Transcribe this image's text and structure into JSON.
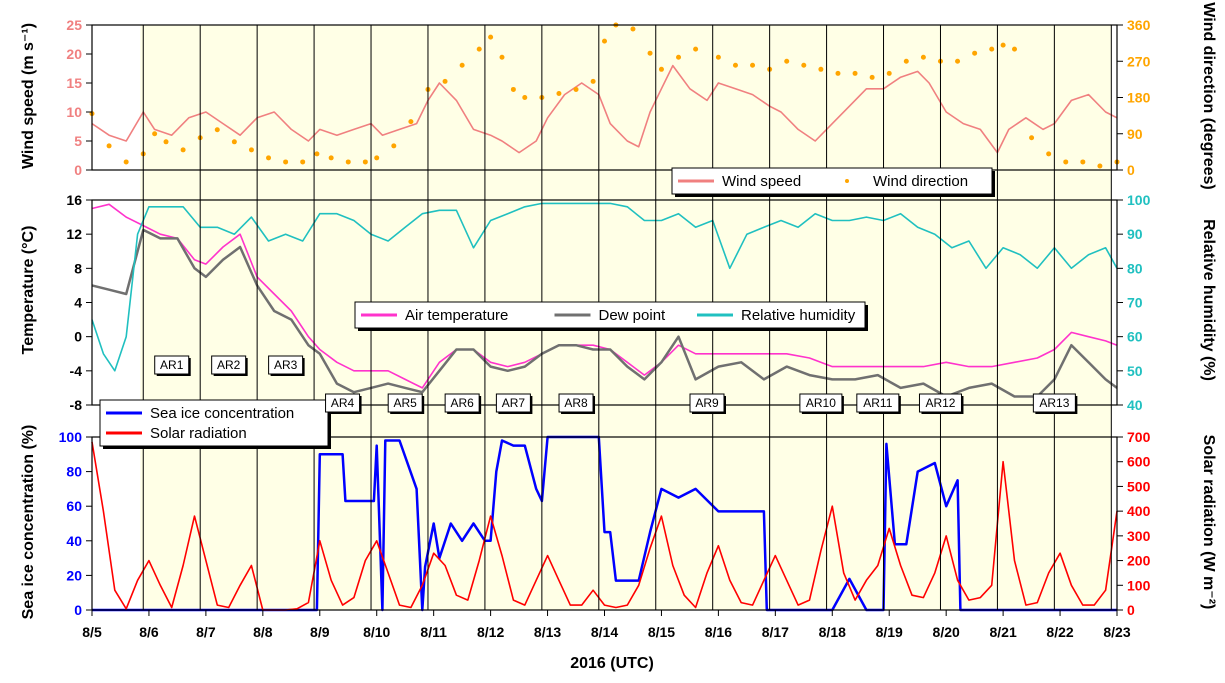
{
  "colors": {
    "wind_speed": "#F08080",
    "wind_direction": "#FFA500",
    "air_temperature": "#FF33CC",
    "dew_point": "#707070",
    "relative_humidity": "#20C0C0",
    "sea_ice": "#0000FF",
    "solar_radiation": "#FF0000",
    "ar_shading": "#FFFFE6"
  },
  "chart_data": [
    {
      "type": "line",
      "panel": "top",
      "xlabel": "2016 (UTC)",
      "x_ticks": [
        "8/5",
        "8/6",
        "8/7",
        "8/8",
        "8/9",
        "8/10",
        "8/11",
        "8/12",
        "8/13",
        "8/14",
        "8/15",
        "8/16",
        "8/17",
        "8/18",
        "8/19",
        "8/20",
        "8/21",
        "8/22",
        "8/23"
      ],
      "x_range": [
        5.0,
        23.0
      ],
      "ylabel_left": "Wind speed (m s⁻¹)",
      "ylabel_right": "Wind direction (degrees)",
      "ylim_left": [
        0,
        25
      ],
      "ylim_right": [
        0,
        360
      ],
      "yticks_left": [
        "0",
        "5",
        "10",
        "15",
        "20",
        "25"
      ],
      "yticks_right": [
        "0",
        "90",
        "180",
        "270",
        "360"
      ],
      "legend": {
        "placement": "bottom-right",
        "entries": [
          "Wind speed",
          "Wind direction"
        ]
      },
      "series": [
        {
          "name": "Wind speed",
          "axis": "left",
          "style": "line",
          "x": [
            5.0,
            5.3,
            5.6,
            5.9,
            6.1,
            6.4,
            6.7,
            7.0,
            7.3,
            7.6,
            7.9,
            8.2,
            8.5,
            8.8,
            9.0,
            9.3,
            9.6,
            9.9,
            10.1,
            10.4,
            10.7,
            10.9,
            11.1,
            11.4,
            11.7,
            12.0,
            12.2,
            12.5,
            12.8,
            13.0,
            13.3,
            13.6,
            13.9,
            14.1,
            14.4,
            14.6,
            14.8,
            15.0,
            15.2,
            15.5,
            15.8,
            16.0,
            16.3,
            16.6,
            16.9,
            17.1,
            17.4,
            17.7,
            18.0,
            18.3,
            18.6,
            18.9,
            19.2,
            19.5,
            19.7,
            20.0,
            20.3,
            20.6,
            20.9,
            21.1,
            21.4,
            21.7,
            21.9,
            22.2,
            22.5,
            22.8,
            23.0
          ],
          "y": [
            8,
            6,
            5,
            10,
            7,
            6,
            9,
            10,
            8,
            6,
            9,
            10,
            7,
            5,
            7,
            6,
            7,
            8,
            6,
            7,
            8,
            12,
            15,
            12,
            7,
            6,
            5,
            3,
            5,
            9,
            13,
            15,
            13,
            8,
            5,
            4,
            10,
            14,
            18,
            14,
            12,
            15,
            14,
            13,
            11,
            10,
            7,
            5,
            8,
            11,
            14,
            14,
            16,
            17,
            15,
            10,
            8,
            7,
            3,
            7,
            9,
            7,
            8,
            12,
            13,
            10,
            9
          ]
        },
        {
          "name": "Wind direction",
          "axis": "right",
          "style": "dots",
          "x": [
            5.0,
            5.3,
            5.6,
            5.9,
            6.1,
            6.3,
            6.6,
            6.9,
            7.2,
            7.5,
            7.8,
            8.1,
            8.4,
            8.7,
            8.95,
            9.2,
            9.5,
            9.8,
            10.0,
            10.3,
            10.6,
            10.9,
            11.2,
            11.5,
            11.8,
            12.0,
            12.2,
            12.4,
            12.6,
            12.9,
            13.2,
            13.5,
            13.8,
            14.0,
            14.2,
            14.5,
            14.8,
            15.0,
            15.3,
            15.6,
            16.0,
            16.3,
            16.6,
            16.9,
            17.2,
            17.5,
            17.8,
            18.1,
            18.4,
            18.7,
            19.0,
            19.3,
            19.6,
            19.9,
            20.2,
            20.5,
            20.8,
            21.0,
            21.2,
            21.5,
            21.8,
            22.1,
            22.4,
            22.7,
            23.0
          ],
          "y": [
            140,
            60,
            20,
            40,
            90,
            70,
            50,
            80,
            100,
            70,
            50,
            30,
            20,
            20,
            40,
            30,
            20,
            20,
            30,
            60,
            120,
            200,
            220,
            260,
            300,
            330,
            280,
            200,
            180,
            180,
            190,
            200,
            220,
            320,
            360,
            350,
            290,
            250,
            280,
            300,
            280,
            260,
            260,
            250,
            270,
            260,
            250,
            240,
            240,
            230,
            240,
            270,
            280,
            270,
            270,
            290,
            300,
            310,
            300,
            80,
            40,
            20,
            20,
            10,
            20
          ]
        }
      ]
    },
    {
      "type": "line",
      "panel": "middle",
      "ylabel_left": "Temperature (°C)",
      "ylabel_right": "Relative humidity (%)",
      "ylim_left": [
        -8,
        16
      ],
      "ylim_right": [
        40,
        100
      ],
      "yticks_left": [
        "-8",
        "-4",
        "0",
        "4",
        "8",
        "12",
        "16"
      ],
      "yticks_right": [
        "40",
        "50",
        "60",
        "70",
        "80",
        "90",
        "100"
      ],
      "legend": {
        "placement": "center-right",
        "entries": [
          "Air temperature",
          "Dew point",
          "Relative humidity"
        ]
      },
      "series": [
        {
          "name": "Air temperature",
          "axis": "left",
          "x": [
            5.0,
            5.3,
            5.6,
            5.9,
            6.2,
            6.5,
            6.8,
            7.0,
            7.3,
            7.6,
            7.9,
            8.2,
            8.5,
            8.8,
            9.0,
            9.3,
            9.6,
            9.9,
            10.2,
            10.5,
            10.8,
            11.1,
            11.4,
            11.7,
            12.0,
            12.3,
            12.6,
            12.9,
            13.2,
            13.5,
            13.8,
            14.1,
            14.4,
            14.7,
            15.0,
            15.3,
            15.6,
            16.0,
            16.4,
            16.8,
            17.2,
            17.6,
            18.0,
            18.4,
            18.8,
            19.2,
            19.6,
            20.0,
            20.4,
            20.8,
            21.2,
            21.6,
            21.9,
            22.2,
            22.5,
            22.8,
            23.0
          ],
          "y": [
            15,
            15.5,
            14,
            13,
            12,
            11.5,
            9,
            8.5,
            10.5,
            12,
            7,
            5,
            3,
            0,
            -1.5,
            -3,
            -4,
            -4,
            -4,
            -5,
            -6,
            -3,
            -1.5,
            -1.5,
            -3,
            -3.5,
            -3,
            -2,
            -1,
            -1,
            -1,
            -1.5,
            -3,
            -4.5,
            -3,
            -1,
            -2,
            -2,
            -2,
            -2,
            -2,
            -2.5,
            -3.5,
            -3.5,
            -3.5,
            -3.5,
            -3.5,
            -3,
            -3.5,
            -3.5,
            -3,
            -2.5,
            -1.5,
            0.5,
            0,
            -0.5,
            -1
          ]
        },
        {
          "name": "Dew point",
          "axis": "left",
          "x": [
            5.0,
            5.3,
            5.6,
            5.9,
            6.2,
            6.5,
            6.8,
            7.0,
            7.3,
            7.6,
            7.9,
            8.2,
            8.5,
            8.8,
            9.0,
            9.3,
            9.6,
            9.9,
            10.2,
            10.5,
            10.8,
            11.1,
            11.4,
            11.7,
            12.0,
            12.3,
            12.6,
            12.9,
            13.2,
            13.5,
            13.8,
            14.1,
            14.4,
            14.7,
            15.0,
            15.3,
            15.6,
            16.0,
            16.4,
            16.8,
            17.2,
            17.6,
            18.0,
            18.4,
            18.8,
            19.2,
            19.6,
            20.0,
            20.4,
            20.8,
            21.2,
            21.6,
            21.9,
            22.2,
            22.5,
            22.8,
            23.0
          ],
          "y": [
            6,
            5.5,
            5,
            12.5,
            11.5,
            11.5,
            8,
            7,
            9,
            10.5,
            6,
            3,
            2,
            -1,
            -2,
            -5.5,
            -6.5,
            -6,
            -5.5,
            -6,
            -6.5,
            -4,
            -1.5,
            -1.5,
            -3.5,
            -4,
            -3.5,
            -2,
            -1,
            -1,
            -1.5,
            -1.5,
            -3.5,
            -5,
            -3,
            0,
            -5,
            -3.5,
            -3,
            -5,
            -3.5,
            -4.5,
            -5,
            -5,
            -4.5,
            -6,
            -5.5,
            -7,
            -6,
            -5.5,
            -7,
            -7,
            -5,
            -1,
            -3,
            -5,
            -6
          ]
        },
        {
          "name": "Relative humidity",
          "axis": "right",
          "x": [
            5.0,
            5.2,
            5.4,
            5.6,
            5.8,
            6.0,
            6.3,
            6.6,
            6.9,
            7.2,
            7.5,
            7.8,
            8.1,
            8.4,
            8.7,
            9.0,
            9.3,
            9.6,
            9.9,
            10.2,
            10.5,
            10.8,
            11.1,
            11.4,
            11.7,
            12.0,
            12.3,
            12.6,
            12.9,
            13.2,
            13.5,
            13.8,
            14.1,
            14.4,
            14.7,
            15.0,
            15.3,
            15.6,
            15.9,
            16.2,
            16.5,
            16.8,
            17.1,
            17.4,
            17.7,
            18.0,
            18.3,
            18.6,
            18.9,
            19.2,
            19.5,
            19.8,
            20.1,
            20.4,
            20.7,
            21.0,
            21.3,
            21.6,
            21.9,
            22.2,
            22.5,
            22.8,
            23.0
          ],
          "y": [
            65,
            55,
            50,
            60,
            90,
            98,
            98,
            98,
            92,
            92,
            90,
            95,
            88,
            90,
            88,
            96,
            96,
            94,
            90,
            88,
            92,
            96,
            97,
            97,
            86,
            94,
            96,
            98,
            99,
            99,
            99,
            99,
            99,
            98,
            94,
            94,
            96,
            92,
            94,
            80,
            90,
            92,
            94,
            92,
            96,
            94,
            94,
            95,
            94,
            96,
            92,
            90,
            86,
            88,
            80,
            86,
            84,
            80,
            86,
            80,
            84,
            86,
            80
          ]
        }
      ]
    },
    {
      "type": "line",
      "panel": "bottom",
      "ylabel_left": "Sea ice concentration (%)",
      "ylabel_right": "Solar radiation (W m⁻²)",
      "ylim_left": [
        0,
        100
      ],
      "ylim_right": [
        0,
        700
      ],
      "yticks_left": [
        "0",
        "20",
        "40",
        "60",
        "80",
        "100"
      ],
      "yticks_right": [
        "0",
        "100",
        "200",
        "300",
        "400",
        "500",
        "600",
        "700"
      ],
      "legend": {
        "placement": "top-left",
        "entries": [
          "Sea ice concentration",
          "Solar radiation"
        ]
      },
      "series": [
        {
          "name": "Sea ice concentration",
          "axis": "left",
          "x": [
            5.0,
            8.95,
            9.0,
            9.05,
            9.4,
            9.45,
            9.95,
            10.0,
            10.1,
            10.15,
            10.4,
            10.7,
            10.8,
            10.85,
            11.0,
            11.1,
            11.3,
            11.5,
            11.7,
            11.9,
            12.0,
            12.1,
            12.2,
            12.4,
            12.6,
            12.8,
            12.9,
            13.0,
            13.9,
            14.0,
            14.1,
            14.2,
            14.6,
            14.8,
            15.0,
            15.3,
            15.6,
            16.0,
            16.8,
            16.85,
            17.8,
            18.0,
            18.3,
            18.6,
            18.9,
            18.95,
            19.1,
            19.3,
            19.5,
            19.8,
            20.0,
            20.2,
            20.25,
            23.0
          ],
          "y": [
            0,
            0,
            90,
            90,
            90,
            63,
            63,
            95,
            0,
            98,
            98,
            70,
            0,
            25,
            50,
            30,
            50,
            40,
            50,
            40,
            40,
            80,
            98,
            95,
            95,
            70,
            63,
            100,
            100,
            45,
            45,
            17,
            17,
            45,
            70,
            65,
            70,
            57,
            57,
            0,
            0,
            0,
            18,
            0,
            0,
            96,
            38,
            38,
            80,
            85,
            60,
            75,
            0,
            0
          ]
        },
        {
          "name": "Solar radiation",
          "axis": "right",
          "x": [
            5.0,
            5.2,
            5.4,
            5.6,
            5.8,
            6.0,
            6.2,
            6.4,
            6.6,
            6.8,
            7.0,
            7.2,
            7.4,
            7.6,
            7.8,
            8.0,
            8.2,
            8.4,
            8.6,
            8.8,
            9.0,
            9.2,
            9.4,
            9.6,
            9.8,
            10.0,
            10.2,
            10.4,
            10.6,
            10.8,
            11.0,
            11.2,
            11.4,
            11.6,
            11.8,
            12.0,
            12.2,
            12.4,
            12.6,
            12.8,
            13.0,
            13.2,
            13.4,
            13.6,
            13.8,
            14.0,
            14.2,
            14.4,
            14.6,
            14.8,
            15.0,
            15.2,
            15.4,
            15.6,
            15.8,
            16.0,
            16.2,
            16.4,
            16.6,
            16.8,
            17.0,
            17.2,
            17.4,
            17.6,
            17.8,
            18.0,
            18.2,
            18.4,
            18.6,
            18.8,
            19.0,
            19.2,
            19.4,
            19.6,
            19.8,
            20.0,
            20.2,
            20.4,
            20.6,
            20.8,
            21.0,
            21.2,
            21.4,
            21.6,
            21.8,
            22.0,
            22.2,
            22.4,
            22.6,
            22.8,
            23.0
          ],
          "y": [
            680,
            400,
            80,
            5,
            120,
            200,
            100,
            10,
            180,
            380,
            200,
            20,
            10,
            100,
            180,
            0,
            0,
            0,
            5,
            30,
            280,
            120,
            20,
            50,
            200,
            280,
            150,
            20,
            10,
            100,
            230,
            180,
            60,
            40,
            200,
            380,
            220,
            40,
            20,
            120,
            220,
            120,
            20,
            20,
            80,
            20,
            10,
            20,
            100,
            250,
            380,
            180,
            60,
            10,
            150,
            260,
            120,
            30,
            20,
            120,
            220,
            120,
            20,
            40,
            240,
            420,
            150,
            40,
            120,
            180,
            330,
            180,
            60,
            50,
            150,
            300,
            120,
            40,
            50,
            100,
            600,
            200,
            20,
            30,
            150,
            230,
            100,
            20,
            20,
            80,
            400
          ]
        }
      ]
    }
  ],
  "ar_labels": [
    "AR1",
    "AR2",
    "AR3",
    "AR4",
    "AR5",
    "AR6",
    "AR7",
    "AR8",
    "AR9",
    "AR10",
    "AR11",
    "AR12",
    "AR13"
  ],
  "ar_positions": [
    6.4,
    7.4,
    8.4,
    9.4,
    10.5,
    11.5,
    12.4,
    13.5,
    15.8,
    17.8,
    18.8,
    19.9,
    21.9
  ],
  "ar_label_rows": [
    "upper",
    "upper",
    "upper",
    "lower",
    "lower",
    "lower",
    "lower",
    "lower",
    "lower",
    "lower",
    "lower",
    "lower",
    "lower"
  ],
  "ar_days": [
    6,
    7,
    8,
    9,
    10,
    11,
    12,
    13,
    14,
    15,
    16,
    17,
    18,
    19,
    20,
    21,
    22
  ]
}
